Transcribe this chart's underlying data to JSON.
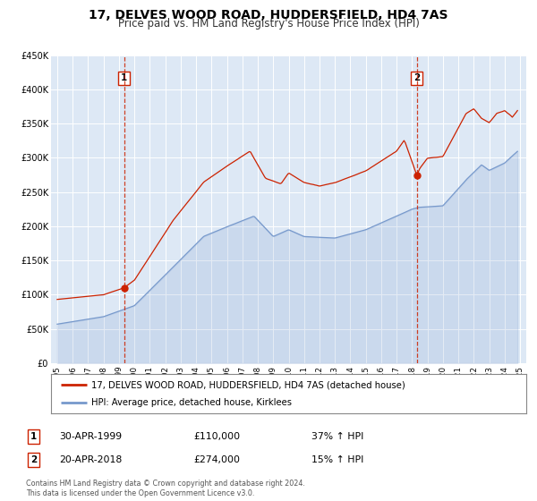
{
  "title": "17, DELVES WOOD ROAD, HUDDERSFIELD, HD4 7AS",
  "subtitle": "Price paid vs. HM Land Registry's House Price Index (HPI)",
  "title_fontsize": 10,
  "subtitle_fontsize": 8.5,
  "bg_color": "#ffffff",
  "plot_bg_color": "#dde8f5",
  "grid_color": "#ffffff",
  "red_color": "#cc2200",
  "blue_color": "#7799cc",
  "sale1_date": 1999.33,
  "sale1_price": 110000,
  "sale2_date": 2018.31,
  "sale2_price": 274000,
  "legend1": "17, DELVES WOOD ROAD, HUDDERSFIELD, HD4 7AS (detached house)",
  "legend2": "HPI: Average price, detached house, Kirklees",
  "note1_label": "1",
  "note1_date": "30-APR-1999",
  "note1_price": "£110,000",
  "note1_hpi": "37% ↑ HPI",
  "note2_label": "2",
  "note2_date": "20-APR-2018",
  "note2_price": "£274,000",
  "note2_hpi": "15% ↑ HPI",
  "footer": "Contains HM Land Registry data © Crown copyright and database right 2024.\nThis data is licensed under the Open Government Licence v3.0.",
  "ylim": [
    0,
    450000
  ],
  "yticks": [
    0,
    50000,
    100000,
    150000,
    200000,
    250000,
    300000,
    350000,
    400000,
    450000
  ],
  "ytick_labels": [
    "£0",
    "£50K",
    "£100K",
    "£150K",
    "£200K",
    "£250K",
    "£300K",
    "£350K",
    "£400K",
    "£450K"
  ]
}
